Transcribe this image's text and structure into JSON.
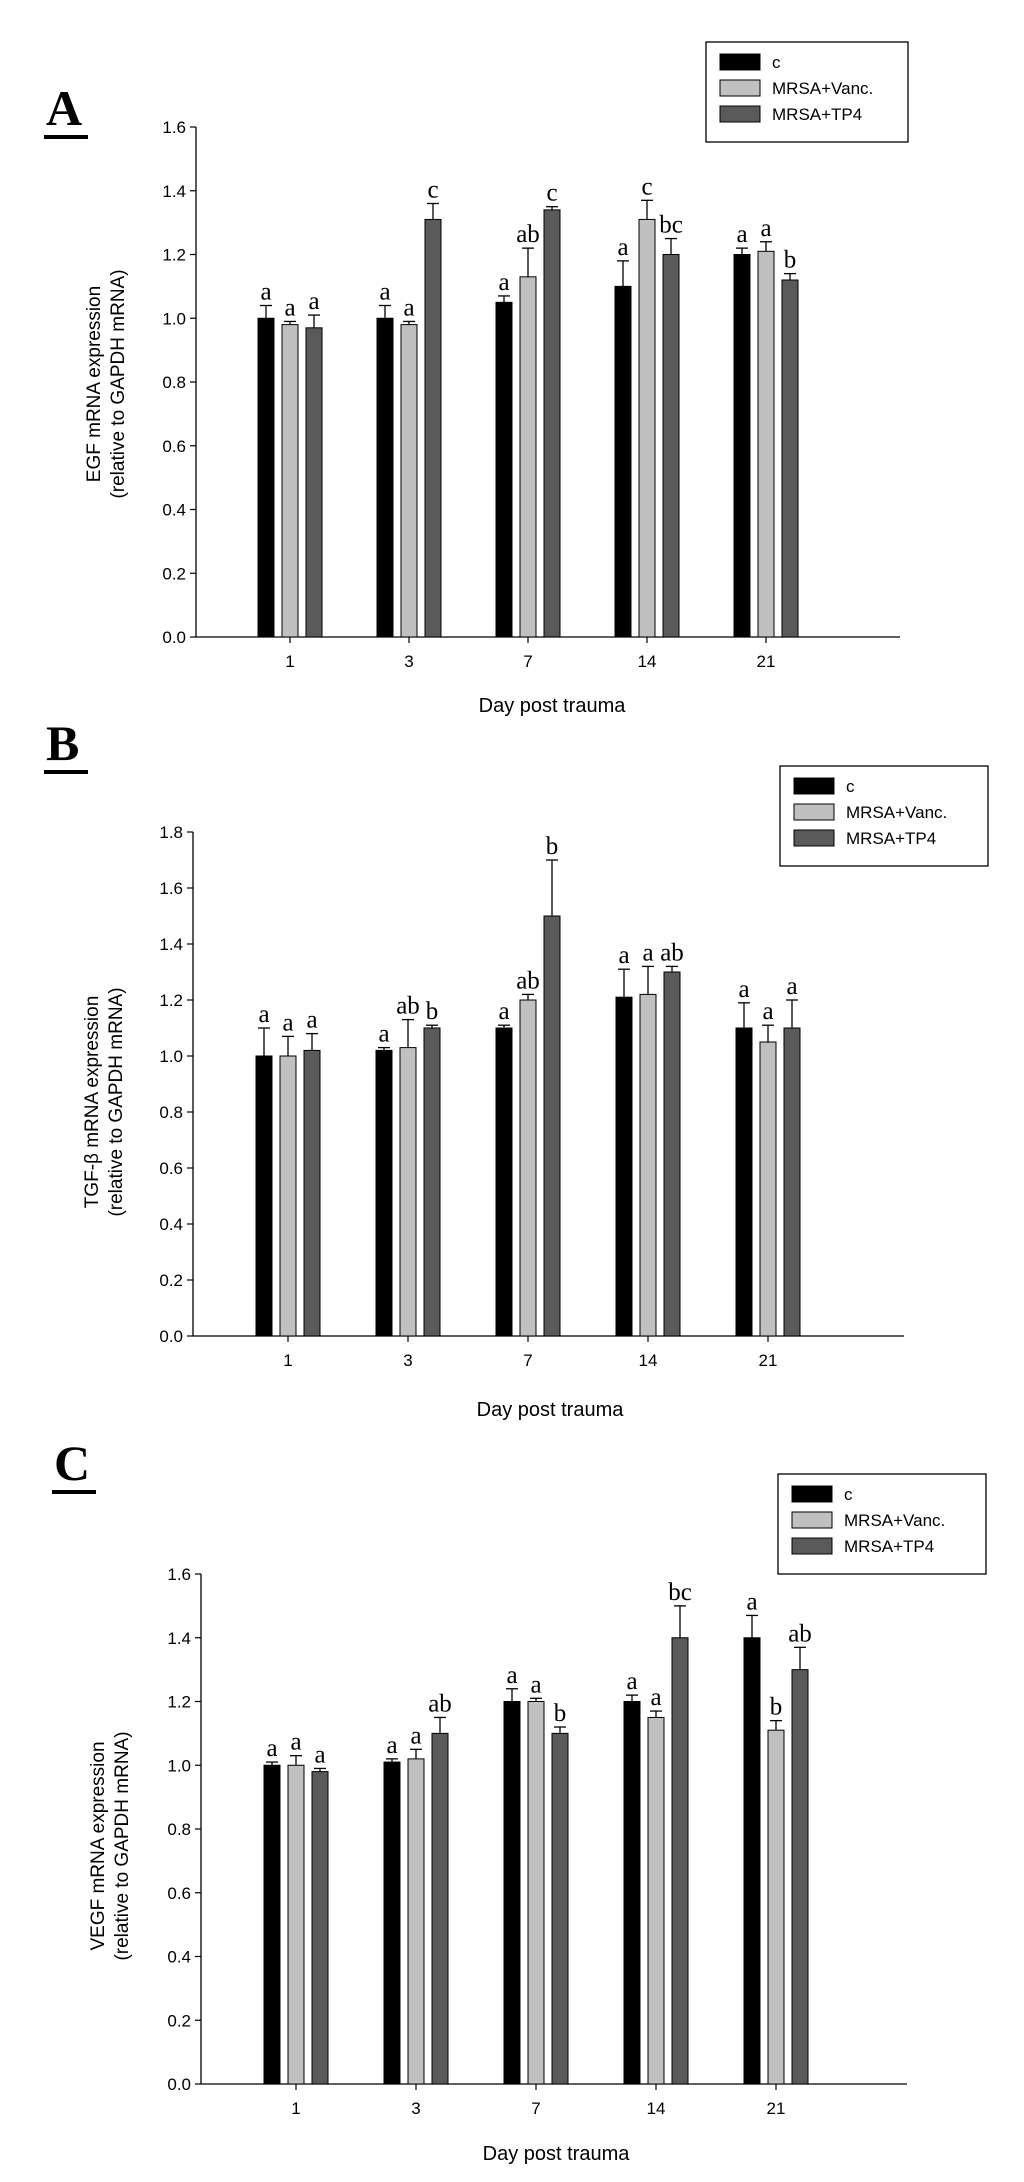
{
  "chart_data": [
    {
      "type": "bar",
      "panel_label": "A",
      "ylabel_line1": "EGF mRNA expression",
      "ylabel_line2": "(relative to GAPDH mRNA)",
      "xlabel": "Day post trauma",
      "categories": [
        "1",
        "3",
        "7",
        "14",
        "21"
      ],
      "ylim": [
        0,
        1.6
      ],
      "yticks": [
        "0.0",
        "0.2",
        "0.4",
        "0.6",
        "0.8",
        "1.0",
        "1.2",
        "1.4",
        "1.6"
      ],
      "legend_position": "top-right",
      "series": [
        {
          "name": "c",
          "color": "#000000",
          "values": [
            1.0,
            1.0,
            1.05,
            1.1,
            1.2
          ],
          "errors": [
            0.04,
            0.04,
            0.02,
            0.08,
            0.02
          ],
          "letters": [
            "a",
            "a",
            "a",
            "a",
            "a"
          ]
        },
        {
          "name": "MRSA+Vanc.",
          "color": "#c0c0c0",
          "values": [
            0.98,
            0.98,
            1.13,
            1.31,
            1.21
          ],
          "errors": [
            0.01,
            0.01,
            0.09,
            0.06,
            0.03
          ],
          "letters": [
            "a",
            "a",
            "ab",
            "c",
            "a"
          ]
        },
        {
          "name": "MRSA+TP4",
          "color": "#5a5a5a",
          "values": [
            0.97,
            1.31,
            1.34,
            1.2,
            1.12
          ],
          "errors": [
            0.04,
            0.05,
            0.01,
            0.05,
            0.02
          ],
          "letters": [
            "a",
            "c",
            "c",
            "bc",
            "b"
          ]
        }
      ]
    },
    {
      "type": "bar",
      "panel_label": "B",
      "ylabel_line1": "TGF-β mRNA expression",
      "ylabel_line2": "(relative to GAPDH mRNA)",
      "xlabel": "Day post trauma",
      "categories": [
        "1",
        "3",
        "7",
        "14",
        "21"
      ],
      "ylim": [
        0,
        1.8
      ],
      "yticks": [
        "0.0",
        "0.2",
        "0.4",
        "0.6",
        "0.8",
        "1.0",
        "1.2",
        "1.4",
        "1.6",
        "1.8"
      ],
      "legend_position": "top-right",
      "series": [
        {
          "name": "c",
          "color": "#000000",
          "values": [
            1.0,
            1.02,
            1.1,
            1.21,
            1.1
          ],
          "errors": [
            0.1,
            0.01,
            0.01,
            0.1,
            0.09
          ],
          "letters": [
            "a",
            "a",
            "a",
            "a",
            "a"
          ]
        },
        {
          "name": "MRSA+Vanc.",
          "color": "#c0c0c0",
          "values": [
            1.0,
            1.03,
            1.2,
            1.22,
            1.05
          ],
          "errors": [
            0.07,
            0.1,
            0.02,
            0.1,
            0.06
          ],
          "letters": [
            "a",
            "ab",
            "ab",
            "a",
            "a"
          ]
        },
        {
          "name": "MRSA+TP4",
          "color": "#5a5a5a",
          "values": [
            1.02,
            1.1,
            1.5,
            1.3,
            1.1
          ],
          "errors": [
            0.06,
            0.01,
            0.2,
            0.02,
            0.1
          ],
          "letters": [
            "a",
            "b",
            "b",
            "ab",
            "a"
          ]
        }
      ]
    },
    {
      "type": "bar",
      "panel_label": "C",
      "ylabel_line1": "VEGF mRNA expression",
      "ylabel_line2": "(relative to GAPDH mRNA)",
      "xlabel": "Day post trauma",
      "categories": [
        "1",
        "3",
        "7",
        "14",
        "21"
      ],
      "ylim": [
        0,
        1.6
      ],
      "yticks": [
        "0.0",
        "0.2",
        "0.4",
        "0.6",
        "0.8",
        "1.0",
        "1.2",
        "1.4",
        "1.6"
      ],
      "legend_position": "top-right",
      "series": [
        {
          "name": "c",
          "color": "#000000",
          "values": [
            1.0,
            1.01,
            1.2,
            1.2,
            1.4
          ],
          "errors": [
            0.01,
            0.01,
            0.04,
            0.02,
            0.07
          ],
          "letters": [
            "a",
            "a",
            "a",
            "a",
            "a"
          ]
        },
        {
          "name": "MRSA+Vanc.",
          "color": "#c0c0c0",
          "values": [
            1.0,
            1.02,
            1.2,
            1.15,
            1.11
          ],
          "errors": [
            0.03,
            0.03,
            0.01,
            0.02,
            0.03
          ],
          "letters": [
            "a",
            "a",
            "a",
            "a",
            "b"
          ]
        },
        {
          "name": "MRSA+TP4",
          "color": "#5a5a5a",
          "values": [
            0.98,
            1.1,
            1.1,
            1.4,
            1.3
          ],
          "errors": [
            0.01,
            0.05,
            0.02,
            0.1,
            0.07
          ],
          "letters": [
            "a",
            "ab",
            "b",
            "bc",
            "ab"
          ]
        }
      ]
    }
  ]
}
